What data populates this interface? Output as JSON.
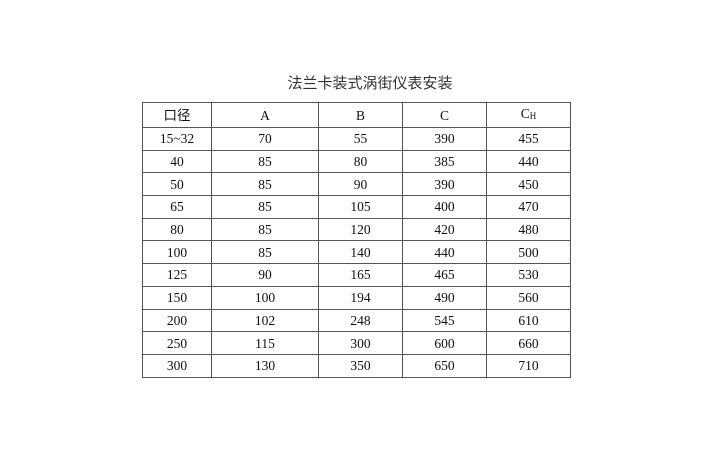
{
  "title": "法兰卡装式涡街仪表安装",
  "table": {
    "headers": [
      "口径",
      "A",
      "B",
      "C"
    ],
    "header_ch": {
      "main": "C",
      "sub": "H"
    },
    "rows": [
      [
        "15~32",
        "70",
        "55",
        "390",
        "455"
      ],
      [
        "40",
        "85",
        "80",
        "385",
        "440"
      ],
      [
        "50",
        "85",
        "90",
        "390",
        "450"
      ],
      [
        "65",
        "85",
        "105",
        "400",
        "470"
      ],
      [
        "80",
        "85",
        "120",
        "420",
        "480"
      ],
      [
        "100",
        "85",
        "140",
        "440",
        "500"
      ],
      [
        "125",
        "90",
        "165",
        "465",
        "530"
      ],
      [
        "150",
        "100",
        "194",
        "490",
        "560"
      ],
      [
        "200",
        "102",
        "248",
        "545",
        "610"
      ],
      [
        "250",
        "115",
        "300",
        "600",
        "660"
      ],
      [
        "300",
        "130",
        "350",
        "650",
        "710"
      ]
    ]
  }
}
